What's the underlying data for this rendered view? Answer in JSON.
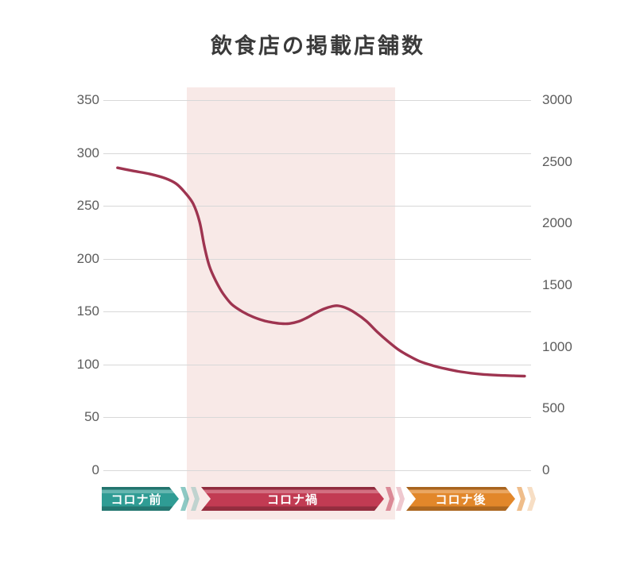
{
  "title": "飲食店の掲載店舗数",
  "colors": {
    "title_text": "#3a3a3a",
    "tick_label": "#5c5c5c",
    "grid": "#d8d8d8",
    "band": "#f8e9e7",
    "line": "#9e3450",
    "period_pre": "#2f9c94",
    "period_during": "#c23b53",
    "period_post": "#e2872a",
    "banner_text": "#ffffff",
    "background": "#ffffff"
  },
  "chart_data": {
    "type": "line",
    "title": "飲食店の掲載店舗数",
    "xlabel": "",
    "ylabel": "",
    "grid": "horizontal-only",
    "left_axis": {
      "range": [
        0,
        350
      ],
      "ticks": [
        0,
        50,
        100,
        150,
        200,
        250,
        300,
        350
      ]
    },
    "right_axis": {
      "range": [
        0,
        3000
      ],
      "ticks": [
        0,
        500,
        1000,
        1500,
        2000,
        2500,
        3000
      ]
    },
    "highlight_band": {
      "label": "コロナ禍",
      "x_start_pct": 19.5,
      "x_end_pct": 68.2,
      "color": "#f8e9e7"
    },
    "periods": [
      {
        "label": "コロナ前",
        "color": "#2f9c94"
      },
      {
        "label": "コロナ禍",
        "color": "#c23b53"
      },
      {
        "label": "コロナ後",
        "color": "#e2872a"
      }
    ],
    "series": [
      {
        "name": "掲載店舗数",
        "axis": "left",
        "color": "#9e3450",
        "points_x_pct_value": [
          [
            3.3,
            286
          ],
          [
            7,
            283
          ],
          [
            11,
            280
          ],
          [
            14.5,
            276
          ],
          [
            17,
            271
          ],
          [
            19,
            263
          ],
          [
            21,
            252
          ],
          [
            22.5,
            235
          ],
          [
            23.6,
            212
          ],
          [
            24.8,
            193
          ],
          [
            26.3,
            179
          ],
          [
            28,
            167
          ],
          [
            30,
            157
          ],
          [
            32.5,
            150
          ],
          [
            35,
            145
          ],
          [
            37.5,
            141.5
          ],
          [
            39.5,
            139.8
          ],
          [
            41.5,
            138.7
          ],
          [
            43.5,
            138.7
          ],
          [
            45.5,
            140.5
          ],
          [
            47.5,
            144
          ],
          [
            49.5,
            148.5
          ],
          [
            51.5,
            152.5
          ],
          [
            53.5,
            155
          ],
          [
            55,
            155.5
          ],
          [
            57,
            153
          ],
          [
            59,
            148.5
          ],
          [
            61.5,
            141
          ],
          [
            64,
            131
          ],
          [
            66.5,
            122
          ],
          [
            69,
            114
          ],
          [
            71.5,
            108
          ],
          [
            74,
            103
          ],
          [
            77,
            99
          ],
          [
            80,
            96
          ],
          [
            83,
            93.5
          ],
          [
            86,
            91.8
          ],
          [
            89,
            90.6
          ],
          [
            92.5,
            89.8
          ],
          [
            96,
            89.3
          ],
          [
            98.5,
            89
          ]
        ]
      }
    ]
  }
}
